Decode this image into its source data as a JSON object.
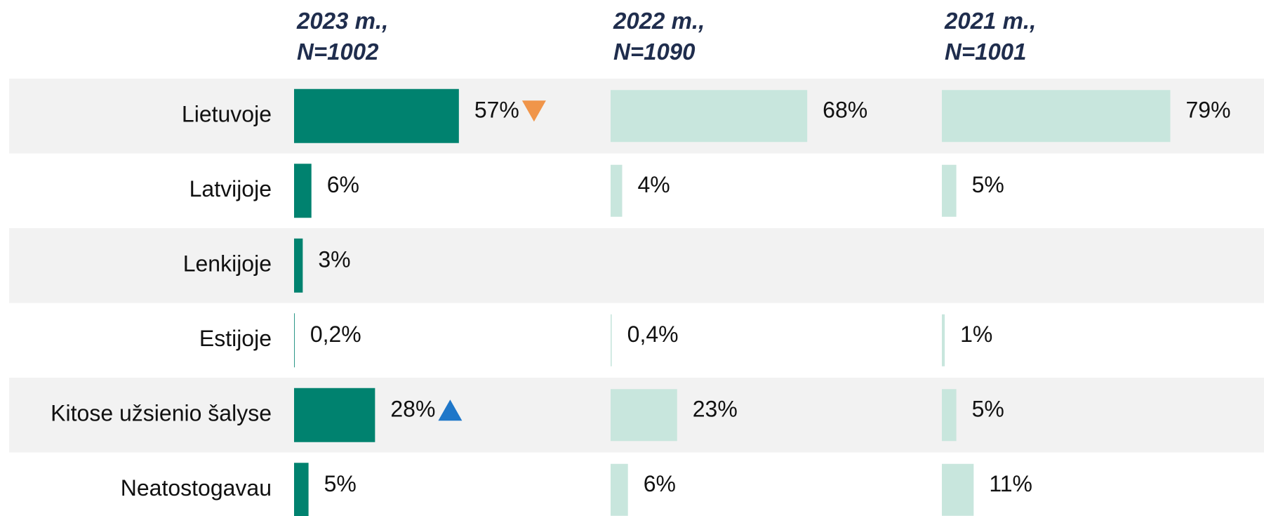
{
  "chart_data": {
    "type": "bar",
    "orientation": "horizontal",
    "categories": [
      "Lietuvoje",
      "Latvijoje",
      "Lenkijoje",
      "Estijoje",
      "Kitose užsienio šalyse",
      "Neatostogavau"
    ],
    "xlim": [
      0,
      100
    ],
    "series": [
      {
        "name": "2023 m., N=1002",
        "color": "#00826f",
        "values": [
          57,
          6,
          3,
          0.2,
          28,
          5
        ],
        "value_labels": [
          "57%",
          "6%",
          "3%",
          "0,2%",
          "28%",
          "5%"
        ],
        "significance": [
          "down",
          null,
          null,
          null,
          "up",
          null
        ]
      },
      {
        "name": "2022 m., N=1090",
        "color": "#c8e6dd",
        "values": [
          68,
          4,
          null,
          0.4,
          23,
          6
        ],
        "value_labels": [
          "68%",
          "4%",
          null,
          "0,4%",
          "23%",
          "6%"
        ]
      },
      {
        "name": "2021 m., N=1001",
        "color": "#c8e6dd",
        "values": [
          79,
          5,
          null,
          1,
          5,
          11
        ],
        "value_labels": [
          "79%",
          "5%",
          null,
          "1%",
          "5%",
          "11%"
        ]
      }
    ],
    "significance_colors": {
      "down": "#f0954a",
      "up": "#1f77c9"
    },
    "row_shading": "#f2f2f2"
  }
}
